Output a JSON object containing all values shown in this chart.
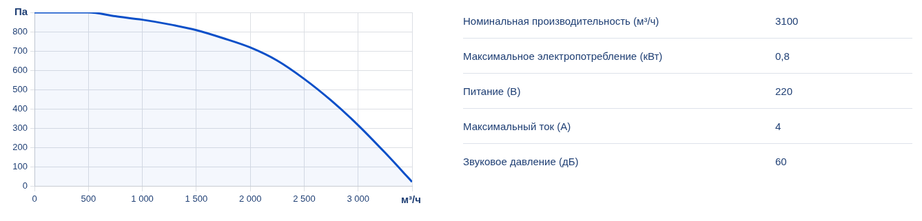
{
  "chart_data": [
    {
      "type": "area",
      "xlabel": "м³/ч",
      "ylabel": "Па",
      "x": [
        0,
        500,
        750,
        1000,
        1250,
        1500,
        1750,
        2000,
        2250,
        2500,
        2750,
        3000,
        3250,
        3500
      ],
      "series": [
        {
          "color": "#0a4fc8",
          "values": [
            900,
            900,
            880,
            862,
            838,
            808,
            766,
            718,
            650,
            555,
            443,
            315,
            172,
            21
          ]
        }
      ],
      "xlim": [
        0,
        3500
      ],
      "xticks": [
        0,
        500,
        {
          "value": 1000,
          "label": "1 000"
        },
        {
          "value": 1500,
          "label": "1 500"
        },
        {
          "value": 2000,
          "label": "2 000"
        },
        {
          "value": 2500,
          "label": "2 500"
        },
        {
          "value": 3000,
          "label": "3 000"
        },
        {
          "value": 3500,
          "label": null
        }
      ],
      "ylim": [
        0,
        900
      ],
      "yticks": [
        0,
        100,
        200,
        300,
        400,
        500,
        600,
        700,
        800,
        {
          "value": 900,
          "label": null
        }
      ],
      "grid": true,
      "marker": "none",
      "line_style": "solid",
      "legend": false
    },
    {
      "type": "other",
      "categories": [
        "Номинальная производительность (м³/ч)",
        "Максимальное электропотребление (кВт)",
        "Питание (В)",
        "Максимальный ток (А)",
        "Звуковое давление (дБ)"
      ],
      "value_labels": [
        "3100",
        "0,8",
        "220",
        "4",
        "60"
      ]
    }
  ]
}
